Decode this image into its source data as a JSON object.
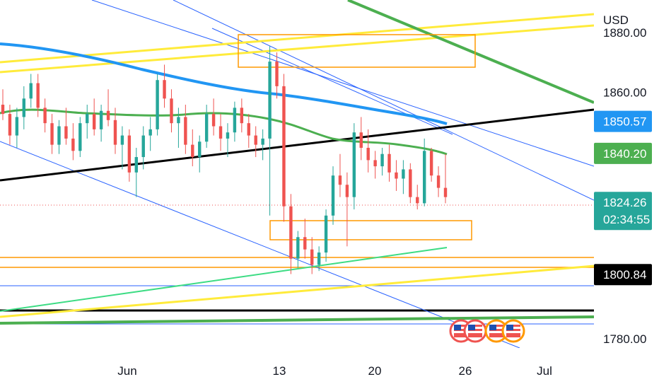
{
  "chart_data": {
    "type": "candlestick",
    "currency_label": "USD",
    "y_range": [
      1777,
      1890
    ],
    "x_tick_labels": [
      "Jun",
      "13",
      "20",
      "26",
      "Jul"
    ],
    "y_tick_labels": [
      "1860.00",
      "1780.00"
    ],
    "y_tick_values": [
      1860,
      1780
    ],
    "price_badges": [
      {
        "label": "1850.57",
        "value": 1850.57,
        "color": "#2196f3"
      },
      {
        "label": "1840.20",
        "value": 1840.2,
        "color": "#4caf50"
      },
      {
        "label": "1824.26",
        "value": 1824.26,
        "color": "#26a69a",
        "countdown": "02:34:55"
      },
      {
        "label": "1800.84",
        "value": 1800.84,
        "color": "#000000"
      }
    ],
    "up_color": "#26a69a",
    "down_color": "#ef5350",
    "candles": [
      [
        1856,
        1861,
        1851,
        1853
      ],
      [
        1853,
        1856,
        1843,
        1846
      ],
      [
        1846,
        1855,
        1842,
        1852
      ],
      [
        1852,
        1862,
        1848,
        1858
      ],
      [
        1858,
        1866,
        1855,
        1863
      ],
      [
        1863,
        1866,
        1852,
        1855
      ],
      [
        1855,
        1858,
        1847,
        1850
      ],
      [
        1850,
        1853,
        1840,
        1843
      ],
      [
        1843,
        1851,
        1840,
        1849
      ],
      [
        1849,
        1855,
        1843,
        1845
      ],
      [
        1845,
        1850,
        1838,
        1841
      ],
      [
        1841,
        1852,
        1839,
        1850
      ],
      [
        1850,
        1856,
        1845,
        1853
      ],
      [
        1853,
        1858,
        1846,
        1848
      ],
      [
        1848,
        1856,
        1844,
        1854
      ],
      [
        1854,
        1861,
        1849,
        1851
      ],
      [
        1851,
        1855,
        1840,
        1843
      ],
      [
        1843,
        1849,
        1835,
        1846
      ],
      [
        1846,
        1848,
        1831,
        1834
      ],
      [
        1834,
        1842,
        1826,
        1839
      ],
      [
        1839,
        1849,
        1835,
        1846
      ],
      [
        1846,
        1852,
        1841,
        1848
      ],
      [
        1848,
        1866,
        1846,
        1864
      ],
      [
        1864,
        1869,
        1855,
        1858
      ],
      [
        1858,
        1861,
        1847,
        1850
      ],
      [
        1850,
        1855,
        1842,
        1852
      ],
      [
        1852,
        1856,
        1840,
        1843
      ],
      [
        1843,
        1848,
        1836,
        1839
      ],
      [
        1839,
        1846,
        1834,
        1844
      ],
      [
        1844,
        1856,
        1842,
        1853
      ],
      [
        1853,
        1858,
        1846,
        1849
      ],
      [
        1849,
        1853,
        1841,
        1845
      ],
      [
        1845,
        1850,
        1839,
        1847
      ],
      [
        1847,
        1857,
        1844,
        1855
      ],
      [
        1855,
        1858,
        1847,
        1850
      ],
      [
        1850,
        1853,
        1842,
        1846
      ],
      [
        1846,
        1849,
        1839,
        1843
      ],
      [
        1843,
        1848,
        1838,
        1845
      ],
      [
        1845,
        1875,
        1820,
        1870
      ],
      [
        1870,
        1873,
        1858,
        1862
      ],
      [
        1862,
        1866,
        1818,
        1823
      ],
      [
        1823,
        1827,
        1801,
        1806
      ],
      [
        1806,
        1815,
        1803,
        1813
      ],
      [
        1813,
        1819,
        1806,
        1809
      ],
      [
        1809,
        1813,
        1801,
        1804
      ],
      [
        1804,
        1810,
        1802,
        1808
      ],
      [
        1808,
        1822,
        1805,
        1820
      ],
      [
        1820,
        1836,
        1817,
        1833
      ],
      [
        1833,
        1840,
        1826,
        1830
      ],
      [
        1830,
        1834,
        1810,
        1826
      ],
      [
        1826,
        1850,
        1822,
        1847
      ],
      [
        1847,
        1852,
        1838,
        1842
      ],
      [
        1842,
        1848,
        1834,
        1838
      ],
      [
        1838,
        1841,
        1832,
        1836
      ],
      [
        1836,
        1842,
        1833,
        1840
      ],
      [
        1840,
        1843,
        1831,
        1834
      ],
      [
        1834,
        1838,
        1828,
        1832
      ],
      [
        1832,
        1838,
        1827,
        1835
      ],
      [
        1835,
        1837,
        1824,
        1826
      ],
      [
        1826,
        1830,
        1822,
        1824
      ],
      [
        1824,
        1845,
        1823,
        1841
      ],
      [
        1841,
        1842,
        1831,
        1833
      ],
      [
        1833,
        1836,
        1826,
        1829
      ],
      [
        1829,
        1840,
        1824,
        1826
      ]
    ]
  }
}
